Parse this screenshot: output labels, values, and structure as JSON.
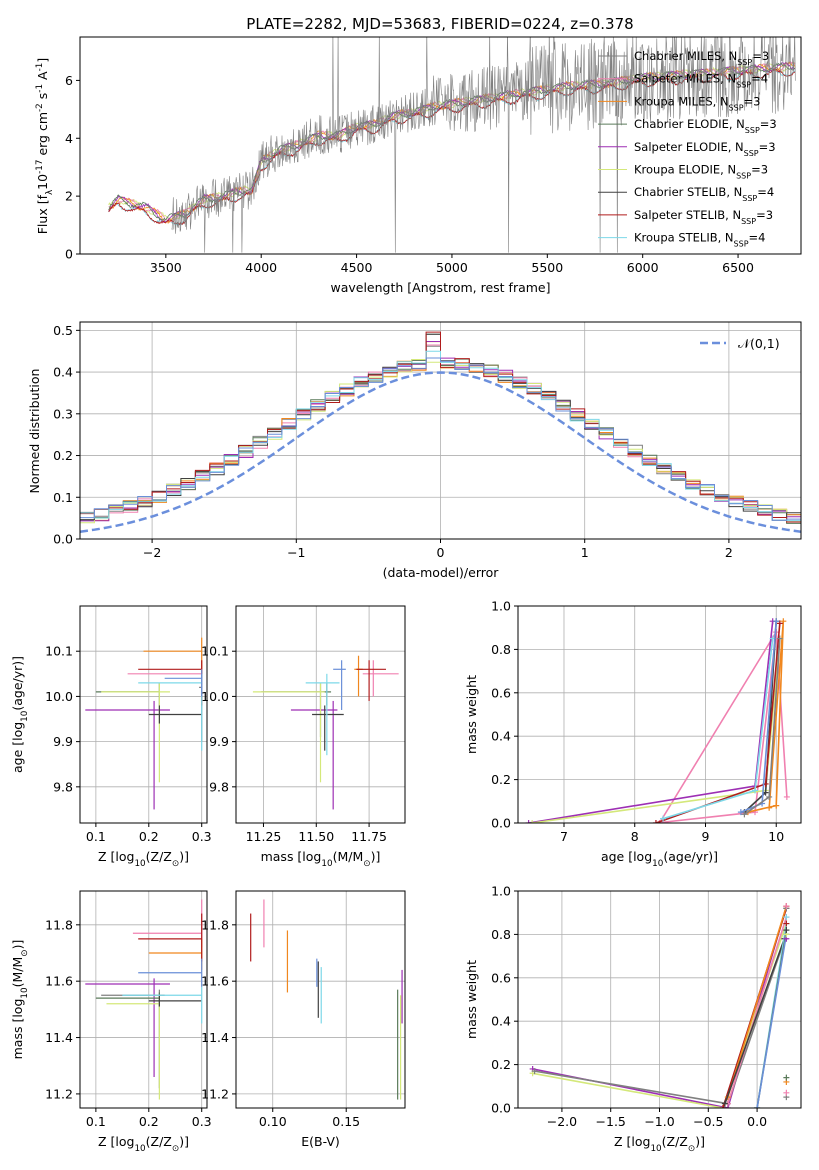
{
  "figure": {
    "title": "PLATE=2282, MJD=53683, FIBERID=0224, z=0.378"
  },
  "colors": {
    "Chabrier MILES": "#808080",
    "Salpeter MILES": "#f080b0",
    "Kroupa MILES": "#f0871e",
    "Chabrier ELODIE": "#5a7a5a",
    "Salpeter ELODIE": "#9d2fb4",
    "Kroupa ELODIE": "#d4e87a",
    "Chabrier STELIB": "#404040",
    "Salpeter STELIB": "#b01c1c",
    "Kroupa STELIB": "#7dd8e8",
    "blue_alt": "#6a8fd8",
    "gauss": "#6b8fdc"
  },
  "chart_data": [
    {
      "id": "spectrum",
      "type": "line",
      "title": "PLATE=2282, MJD=53683, FIBERID=0224, z=0.378",
      "xlabel": "wavelength [Angstrom, rest frame]",
      "ylabel": "Flux [f$_\\lambda$10$^{-17}$ erg cm$^{-2}$ s$^{-1}$ A$^{-1}$]",
      "xlim": [
        3050,
        6830
      ],
      "ylim": [
        0,
        7.5
      ],
      "xticks": [
        3500,
        4000,
        4500,
        5000,
        5500,
        6000,
        6500
      ],
      "yticks": [
        0,
        2,
        4,
        6
      ],
      "legend_position": "top-right",
      "legend": [
        "Chabrier MILES, N$_{SSP}$=3",
        "Salpeter MILES, N$_{SSP}$=4",
        "Kroupa MILES, N$_{SSP}$=3",
        "Chabrier ELODIE, N$_{SSP}$=3",
        "Salpeter ELODIE, N$_{SSP}$=3",
        "Kroupa ELODIE, N$_{SSP}$=3",
        "Chabrier STELIB, N$_{SSP}$=4",
        "Salpeter STELIB, N$_{SSP}$=3",
        "Kroupa STELIB, N$_{SSP}$=4"
      ],
      "continuum": {
        "x": [
          3200,
          3250,
          3300,
          3400,
          3500,
          3600,
          3700,
          3800,
          3900,
          3950,
          4000,
          4100,
          4200,
          4300,
          4400,
          4500,
          4600,
          4700,
          4800,
          4900,
          5000,
          5200,
          5400,
          5600,
          5800,
          6000,
          6200,
          6400,
          6600,
          6800
        ],
        "y": [
          1.6,
          1.9,
          1.8,
          1.6,
          1.2,
          1.4,
          1.9,
          2.0,
          2.2,
          2.2,
          3.2,
          3.6,
          3.8,
          4.1,
          4.1,
          4.4,
          4.5,
          4.8,
          4.9,
          5.1,
          5.2,
          5.4,
          5.6,
          5.8,
          5.9,
          6.1,
          6.2,
          6.3,
          6.4,
          6.5
        ]
      }
    },
    {
      "id": "residuals",
      "type": "line",
      "xlabel": "(data-model)/error",
      "ylabel": "Normed distribution",
      "xlim": [
        -2.5,
        2.5
      ],
      "ylim": [
        0,
        0.52
      ],
      "xticks": [
        -2,
        -1,
        0,
        1,
        2
      ],
      "yticks": [
        0.0,
        0.1,
        0.2,
        0.3,
        0.4,
        0.5
      ],
      "grid": true,
      "legend_position": "top-right",
      "legend": [
        "$\\mathcal{N}(0,1)$"
      ],
      "bin_width": 0.1,
      "gauss": {
        "mean": 0,
        "sigma": 1
      }
    },
    {
      "id": "age_vs_Z",
      "type": "scatter",
      "xlabel": "Z [log$_{10}$(Z/Z$_\\odot$)]",
      "ylabel": "age  [log$_{10}$(age/yr)]",
      "xlim": [
        0.07,
        0.31
      ],
      "ylim": [
        9.72,
        10.2
      ],
      "xticks": [
        0.1,
        0.2,
        0.3
      ],
      "yticks": [
        9.8,
        9.9,
        10.0,
        10.1
      ],
      "grid": true,
      "points": [
        {
          "model": "Chabrier MILES",
          "x": 0.3,
          "y": 10.02,
          "xerr": [
            0.005,
            0.0
          ],
          "yerr": [
            0.12,
            0.05
          ]
        },
        {
          "model": "Salpeter MILES",
          "x": 0.3,
          "y": 10.05,
          "xerr": [
            0.14,
            0.0
          ],
          "yerr": [
            0.05,
            0.03
          ]
        },
        {
          "model": "Kroupa MILES",
          "x": 0.3,
          "y": 10.1,
          "xerr": [
            0.11,
            0.0
          ],
          "yerr": [
            0.06,
            0.03
          ]
        },
        {
          "model": "Chabrier ELODIE",
          "x": 0.22,
          "y": 10.01,
          "xerr": [
            0.12,
            0.0
          ],
          "yerr": [
            0.03,
            0.02
          ]
        },
        {
          "model": "Salpeter ELODIE",
          "x": 0.21,
          "y": 9.97,
          "xerr": [
            0.13,
            0.03
          ],
          "yerr": [
            0.22,
            0.02
          ]
        },
        {
          "model": "Kroupa ELODIE",
          "x": 0.22,
          "y": 10.01,
          "xerr": [
            0.11,
            0.02
          ],
          "yerr": [
            0.2,
            0.02
          ]
        },
        {
          "model": "Chabrier STELIB",
          "x": 0.22,
          "y": 9.96,
          "xerr": [
            0.02,
            0.08
          ],
          "yerr": [
            0.02,
            0.02
          ]
        },
        {
          "model": "Salpeter STELIB",
          "x": 0.3,
          "y": 10.06,
          "xerr": [
            0.12,
            0.0
          ],
          "yerr": [
            0.08,
            0.02
          ]
        },
        {
          "model": "Kroupa STELIB",
          "x": 0.3,
          "y": 10.03,
          "xerr": [
            0.12,
            0.0
          ],
          "yerr": [
            0.15,
            0.02
          ]
        },
        {
          "model": "blue",
          "x": 0.3,
          "y": 10.04,
          "xerr": [
            0.07,
            0.0
          ],
          "yerr": [
            0.04,
            0.02
          ]
        }
      ]
    },
    {
      "id": "age_vs_mass",
      "type": "scatter",
      "xlabel": "mass [log$_{10}$(M/M$_\\odot$)]",
      "ylabel": "",
      "xlim": [
        11.12,
        11.92
      ],
      "ylim": [
        9.72,
        10.2
      ],
      "xticks": [
        11.25,
        11.5,
        11.75
      ],
      "yticks": [
        9.8,
        9.9,
        10.0,
        10.1
      ],
      "grid": true,
      "points": [
        {
          "model": "Chabrier MILES",
          "x": 11.52,
          "y": 10.01,
          "xerr": [
            0.28,
            0.02
          ],
          "yerr": [
            0.1,
            0.02
          ]
        },
        {
          "model": "Salpeter MILES",
          "x": 11.77,
          "y": 10.05,
          "xerr": [
            0.05,
            0.12
          ],
          "yerr": [
            0.05,
            0.03
          ]
        },
        {
          "model": "Kroupa MILES",
          "x": 11.7,
          "y": 10.06,
          "xerr": [
            0.02,
            0.02
          ],
          "yerr": [
            0.06,
            0.03
          ]
        },
        {
          "model": "Chabrier ELODIE",
          "x": 11.55,
          "y": 10.01,
          "xerr": [
            0.02,
            0.02
          ],
          "yerr": [
            0.03,
            0.02
          ]
        },
        {
          "model": "Salpeter ELODIE",
          "x": 11.58,
          "y": 9.97,
          "xerr": [
            0.2,
            0.02
          ],
          "yerr": [
            0.22,
            0.02
          ]
        },
        {
          "model": "Kroupa ELODIE",
          "x": 11.52,
          "y": 10.01,
          "xerr": [
            0.32,
            0.02
          ],
          "yerr": [
            0.2,
            0.02
          ]
        },
        {
          "model": "Chabrier STELIB",
          "x": 11.54,
          "y": 9.96,
          "xerr": [
            0.06,
            0.09
          ],
          "yerr": [
            0.08,
            0.02
          ]
        },
        {
          "model": "Salpeter STELIB",
          "x": 11.75,
          "y": 10.06,
          "xerr": [
            0.06,
            0.08
          ],
          "yerr": [
            0.07,
            0.02
          ]
        },
        {
          "model": "Kroupa STELIB",
          "x": 11.55,
          "y": 10.03,
          "xerr": [
            0.1,
            0.06
          ],
          "yerr": [
            0.16,
            0.02
          ]
        },
        {
          "model": "blue",
          "x": 11.62,
          "y": 10.06,
          "xerr": [
            0.04,
            0.02
          ],
          "yerr": [
            0.09,
            0.02
          ]
        }
      ]
    },
    {
      "id": "massweight_vs_age",
      "type": "line",
      "xlabel": "age  [log$_{10}$(age/yr)]",
      "ylabel": "mass weight",
      "xlim": [
        6.35,
        10.35
      ],
      "ylim": [
        0,
        1.0
      ],
      "xticks": [
        7,
        8,
        9,
        10
      ],
      "yticks": [
        0.0,
        0.2,
        0.4,
        0.6,
        0.8,
        1.0
      ],
      "grid": true,
      "series": [
        {
          "model": "Salpeter MILES",
          "x": [
            8.3,
            9.7,
            10.0,
            10.15
          ],
          "y": [
            0.0,
            0.05,
            0.88,
            0.12
          ]
        },
        {
          "model": "Salpeter MILES",
          "x": [
            8.35,
            10.0
          ],
          "y": [
            0.0,
            0.88
          ]
        },
        {
          "model": "Kroupa MILES",
          "x": [
            9.6,
            10.0,
            10.1,
            9.9
          ],
          "y": [
            0.05,
            0.08,
            0.93,
            0.07
          ]
        },
        {
          "model": "Salpeter ELODIE",
          "x": [
            6.5,
            9.7,
            9.95
          ],
          "y": [
            0.0,
            0.17,
            0.93
          ]
        },
        {
          "model": "Kroupa ELODIE",
          "x": [
            6.55,
            9.85,
            10.05
          ],
          "y": [
            0.0,
            0.15,
            0.85
          ]
        },
        {
          "model": "Chabrier STELIB",
          "x": [
            9.55,
            9.85,
            10.0
          ],
          "y": [
            0.05,
            0.14,
            0.93
          ]
        },
        {
          "model": "Salpeter STELIB",
          "x": [
            8.3,
            9.85,
            10.05
          ],
          "y": [
            0.0,
            0.18,
            0.92
          ]
        },
        {
          "model": "Kroupa STELIB",
          "x": [
            8.4,
            9.7,
            9.95
          ],
          "y": [
            0.02,
            0.15,
            0.85
          ]
        },
        {
          "model": "blue",
          "x": [
            9.5,
            9.8,
            10.0
          ],
          "y": [
            0.05,
            0.09,
            0.93
          ]
        },
        {
          "model": "Chabrier MILES",
          "x": [
            9.55,
            9.9,
            10.05
          ],
          "y": [
            0.04,
            0.12,
            0.85
          ]
        }
      ]
    },
    {
      "id": "mass_vs_Z",
      "type": "scatter",
      "xlabel": "Z [log$_{10}$(Z/Z$_\\odot$)]",
      "ylabel": "mass [log$_{10}$(M/M$_\\odot$)]",
      "xlim": [
        0.07,
        0.31
      ],
      "ylim": [
        11.15,
        11.92
      ],
      "xticks": [
        0.1,
        0.2,
        0.3
      ],
      "yticks": [
        11.2,
        11.4,
        11.6,
        11.8
      ],
      "grid": true,
      "points": [
        {
          "model": "Salpeter MILES",
          "x": 0.3,
          "y": 11.77,
          "xerr": [
            0.13,
            0.0
          ],
          "yerr": [
            0.05,
            0.12
          ]
        },
        {
          "model": "Kroupa MILES",
          "x": 0.3,
          "y": 11.7,
          "xerr": [
            0.1,
            0.0
          ],
          "yerr": [
            0.06,
            0.05
          ]
        },
        {
          "model": "Salpeter STELIB",
          "x": 0.3,
          "y": 11.75,
          "xerr": [
            0.12,
            0.0
          ],
          "yerr": [
            0.08,
            0.09
          ]
        },
        {
          "model": "blue",
          "x": 0.3,
          "y": 11.63,
          "xerr": [
            0.12,
            0.0
          ],
          "yerr": [
            0.05,
            0.05
          ]
        },
        {
          "model": "Salpeter ELODIE",
          "x": 0.21,
          "y": 11.59,
          "xerr": [
            0.13,
            0.03
          ],
          "yerr": [
            0.33,
            0.02
          ]
        },
        {
          "model": "Chabrier MILES",
          "x": 0.22,
          "y": 11.55,
          "xerr": [
            0.11,
            0.01
          ],
          "yerr": [
            0.33,
            0.02
          ]
        },
        {
          "model": "Chabrier ELODIE",
          "x": 0.22,
          "y": 11.54,
          "xerr": [
            0.12,
            0.0
          ],
          "yerr": [
            0.03,
            0.02
          ]
        },
        {
          "model": "Kroupa ELODIE",
          "x": 0.22,
          "y": 11.52,
          "xerr": [
            0.1,
            0.0
          ],
          "yerr": [
            0.34,
            0.03
          ]
        },
        {
          "model": "Chabrier STELIB",
          "x": 0.22,
          "y": 11.53,
          "xerr": [
            0.02,
            0.08
          ],
          "yerr": [
            0.02,
            0.02
          ]
        },
        {
          "model": "Kroupa STELIB",
          "x": 0.3,
          "y": 11.55,
          "xerr": [
            0.15,
            0.0
          ],
          "yerr": [
            0.1,
            0.03
          ]
        }
      ]
    },
    {
      "id": "mass_vs_EBV",
      "type": "scatter",
      "xlabel": "E(B-V)",
      "ylabel": "",
      "xlim": [
        0.075,
        0.19
      ],
      "ylim": [
        11.15,
        11.92
      ],
      "xticks": [
        0.1,
        0.15
      ],
      "yticks": [
        11.2,
        11.4,
        11.6,
        11.8
      ],
      "grid": true,
      "points": [
        {
          "model": "Salpeter STELIB",
          "x": 0.085,
          "y": 11.75,
          "yerr": [
            0.08,
            0.09
          ]
        },
        {
          "model": "Salpeter MILES",
          "x": 0.094,
          "y": 11.77,
          "yerr": [
            0.05,
            0.12
          ]
        },
        {
          "model": "Kroupa MILES",
          "x": 0.11,
          "y": 11.68,
          "yerr": [
            0.12,
            0.1
          ]
        },
        {
          "model": "blue",
          "x": 0.13,
          "y": 11.63,
          "yerr": [
            0.05,
            0.05
          ]
        },
        {
          "model": "Chabrier STELIB",
          "x": 0.131,
          "y": 11.58,
          "yerr": [
            0.11,
            0.09
          ]
        },
        {
          "model": "Kroupa STELIB",
          "x": 0.133,
          "y": 11.55,
          "yerr": [
            0.1,
            0.1
          ]
        },
        {
          "model": "Chabrier ELODIE",
          "x": 0.185,
          "y": 11.4,
          "yerr": [
            0.22,
            0.17
          ]
        },
        {
          "model": "Salpeter ELODIE",
          "x": 0.188,
          "y": 11.55,
          "yerr": [
            0.1,
            0.09
          ]
        },
        {
          "model": "Kroupa ELODIE",
          "x": 0.187,
          "y": 11.38,
          "yerr": [
            0.2,
            0.17
          ]
        }
      ]
    },
    {
      "id": "massweight_vs_Z",
      "type": "line",
      "xlabel": "Z [log$_{10}$(Z/Z$_\\odot$)]",
      "ylabel": "mass weight",
      "xlim": [
        -2.45,
        0.45
      ],
      "ylim": [
        0,
        1.0
      ],
      "xticks": [
        -2.0,
        -1.5,
        -1.0,
        -0.5,
        0.0
      ],
      "yticks": [
        0.0,
        0.2,
        0.4,
        0.6,
        0.8,
        1.0
      ],
      "grid": true,
      "series": [
        {
          "model": "Salpeter ELODIE",
          "x": [
            -2.3,
            -0.3,
            0.3
          ],
          "y": [
            0.18,
            0.0,
            0.93
          ]
        },
        {
          "model": "Kroupa ELODIE",
          "x": [
            -2.3,
            -0.35,
            0.3
          ],
          "y": [
            0.16,
            0.0,
            0.85
          ]
        },
        {
          "model": "Chabrier MILES",
          "x": [
            -2.28,
            -0.3,
            0.3
          ],
          "y": [
            0.17,
            0.02,
            0.8
          ]
        },
        {
          "model": "Salpeter STELIB",
          "x": [
            -0.35,
            0.3
          ],
          "y": [
            0.0,
            0.92
          ]
        },
        {
          "model": "Salpeter MILES",
          "x": [
            -0.3,
            0.3
          ],
          "y": [
            0.02,
            0.88
          ]
        },
        {
          "model": "Kroupa MILES",
          "x": [
            -0.3,
            0.3
          ],
          "y": [
            0.05,
            0.93
          ]
        },
        {
          "model": "Chabrier STELIB",
          "x": [
            -0.33,
            0.28
          ],
          "y": [
            0.02,
            0.78
          ]
        },
        {
          "model": "Kroupa STELIB",
          "x": [
            0.0,
            0.3
          ],
          "y": [
            0.0,
            0.85
          ]
        },
        {
          "model": "Chabrier ELODIE",
          "x": [
            0.0,
            0.3
          ],
          "y": [
            0.0,
            0.82
          ]
        },
        {
          "model": "blue",
          "x": [
            0.0,
            0.3
          ],
          "y": [
            0.0,
            0.8
          ]
        }
      ],
      "markers_x": 0.3,
      "markers_y": [
        0.05,
        0.07,
        0.12,
        0.14,
        0.78,
        0.8,
        0.82,
        0.85,
        0.88,
        0.92,
        0.93
      ]
    }
  ]
}
